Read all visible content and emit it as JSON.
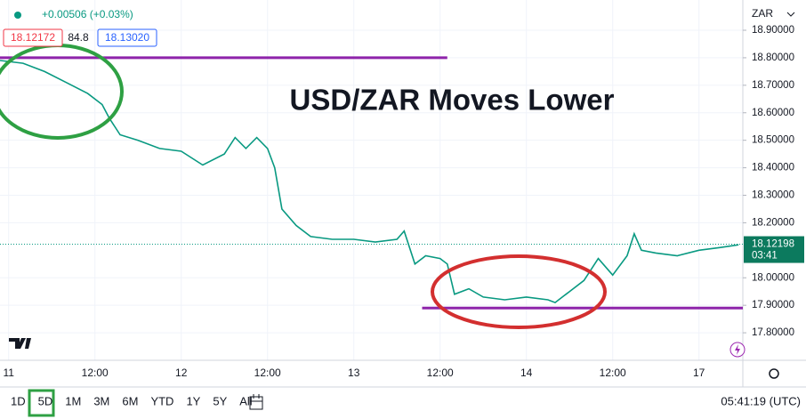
{
  "chart_data": {
    "type": "line",
    "title": "USD/ZAR Moves Lower",
    "currency": "ZAR",
    "change": "+0.00506 (+0.03%)",
    "bid": "18.12172",
    "spread": "84.8",
    "ask": "18.13020",
    "last_price": 18.12198,
    "countdown": "03:41",
    "x": [
      -1.2,
      2,
      5,
      8,
      11,
      13,
      14,
      15.5,
      18,
      21,
      24,
      27,
      30,
      31.5,
      33,
      34.5,
      36,
      37,
      38,
      40,
      42,
      45,
      48,
      51,
      54,
      55,
      56.5,
      58,
      60,
      61,
      62,
      64,
      66,
      69,
      72,
      75,
      76,
      78,
      80,
      82,
      84,
      86,
      87,
      88,
      90,
      93,
      96,
      99,
      101.5
    ],
    "series": [
      {
        "color": "#089981",
        "values": [
          18.79,
          18.78,
          18.75,
          18.71,
          18.67,
          18.63,
          18.58,
          18.52,
          18.5,
          18.47,
          18.46,
          18.41,
          18.45,
          18.51,
          18.47,
          18.51,
          18.47,
          18.4,
          18.25,
          18.19,
          18.15,
          18.14,
          18.14,
          18.13,
          18.14,
          18.17,
          18.05,
          18.08,
          18.07,
          18.05,
          17.94,
          17.96,
          17.93,
          17.92,
          17.93,
          17.92,
          17.91,
          17.95,
          17.99,
          18.07,
          18.01,
          18.08,
          18.16,
          18.1,
          18.09,
          18.08,
          18.1,
          18.11,
          18.12
        ]
      }
    ],
    "hlines": [
      {
        "value": 18.8,
        "from": -1.2,
        "to": 61,
        "color": "#8e24aa"
      },
      {
        "value": 17.89,
        "from": 57.5,
        "to": 102.1,
        "color": "#8e24aa"
      }
    ],
    "xlim": [
      -1.2,
      102.1
    ],
    "xticks": [
      {
        "value": 0,
        "label": "11"
      },
      {
        "value": 12,
        "label": "12:00"
      },
      {
        "value": 24,
        "label": "12"
      },
      {
        "value": 36,
        "label": "12:00"
      },
      {
        "value": 48,
        "label": "13"
      },
      {
        "value": 60,
        "label": "12:00"
      },
      {
        "value": 72,
        "label": "14"
      },
      {
        "value": 84,
        "label": "12:00"
      },
      {
        "value": 96,
        "label": "17"
      }
    ],
    "ylim": [
      17.7,
      19.01
    ],
    "yticks": [
      {
        "value": 17.8,
        "label": "17.80000"
      },
      {
        "value": 17.9,
        "label": "17.90000"
      },
      {
        "value": 18.0,
        "label": "18.00000"
      },
      {
        "value": 18.2,
        "label": "18.20000"
      },
      {
        "value": 18.3,
        "label": "18.30000"
      },
      {
        "value": 18.4,
        "label": "18.40000"
      },
      {
        "value": 18.5,
        "label": "18.50000"
      },
      {
        "value": 18.6,
        "label": "18.60000"
      },
      {
        "value": 18.7,
        "label": "18.70000"
      },
      {
        "value": 18.8,
        "label": "18.80000"
      },
      {
        "value": 18.9,
        "label": "18.90000"
      }
    ],
    "grid": true
  },
  "toolbar": {
    "ranges": [
      "1D",
      "5D",
      "1M",
      "3M",
      "6M",
      "YTD",
      "1Y",
      "5Y",
      "All"
    ],
    "selected": 1,
    "clock": "05:41:19 (UTC)"
  }
}
